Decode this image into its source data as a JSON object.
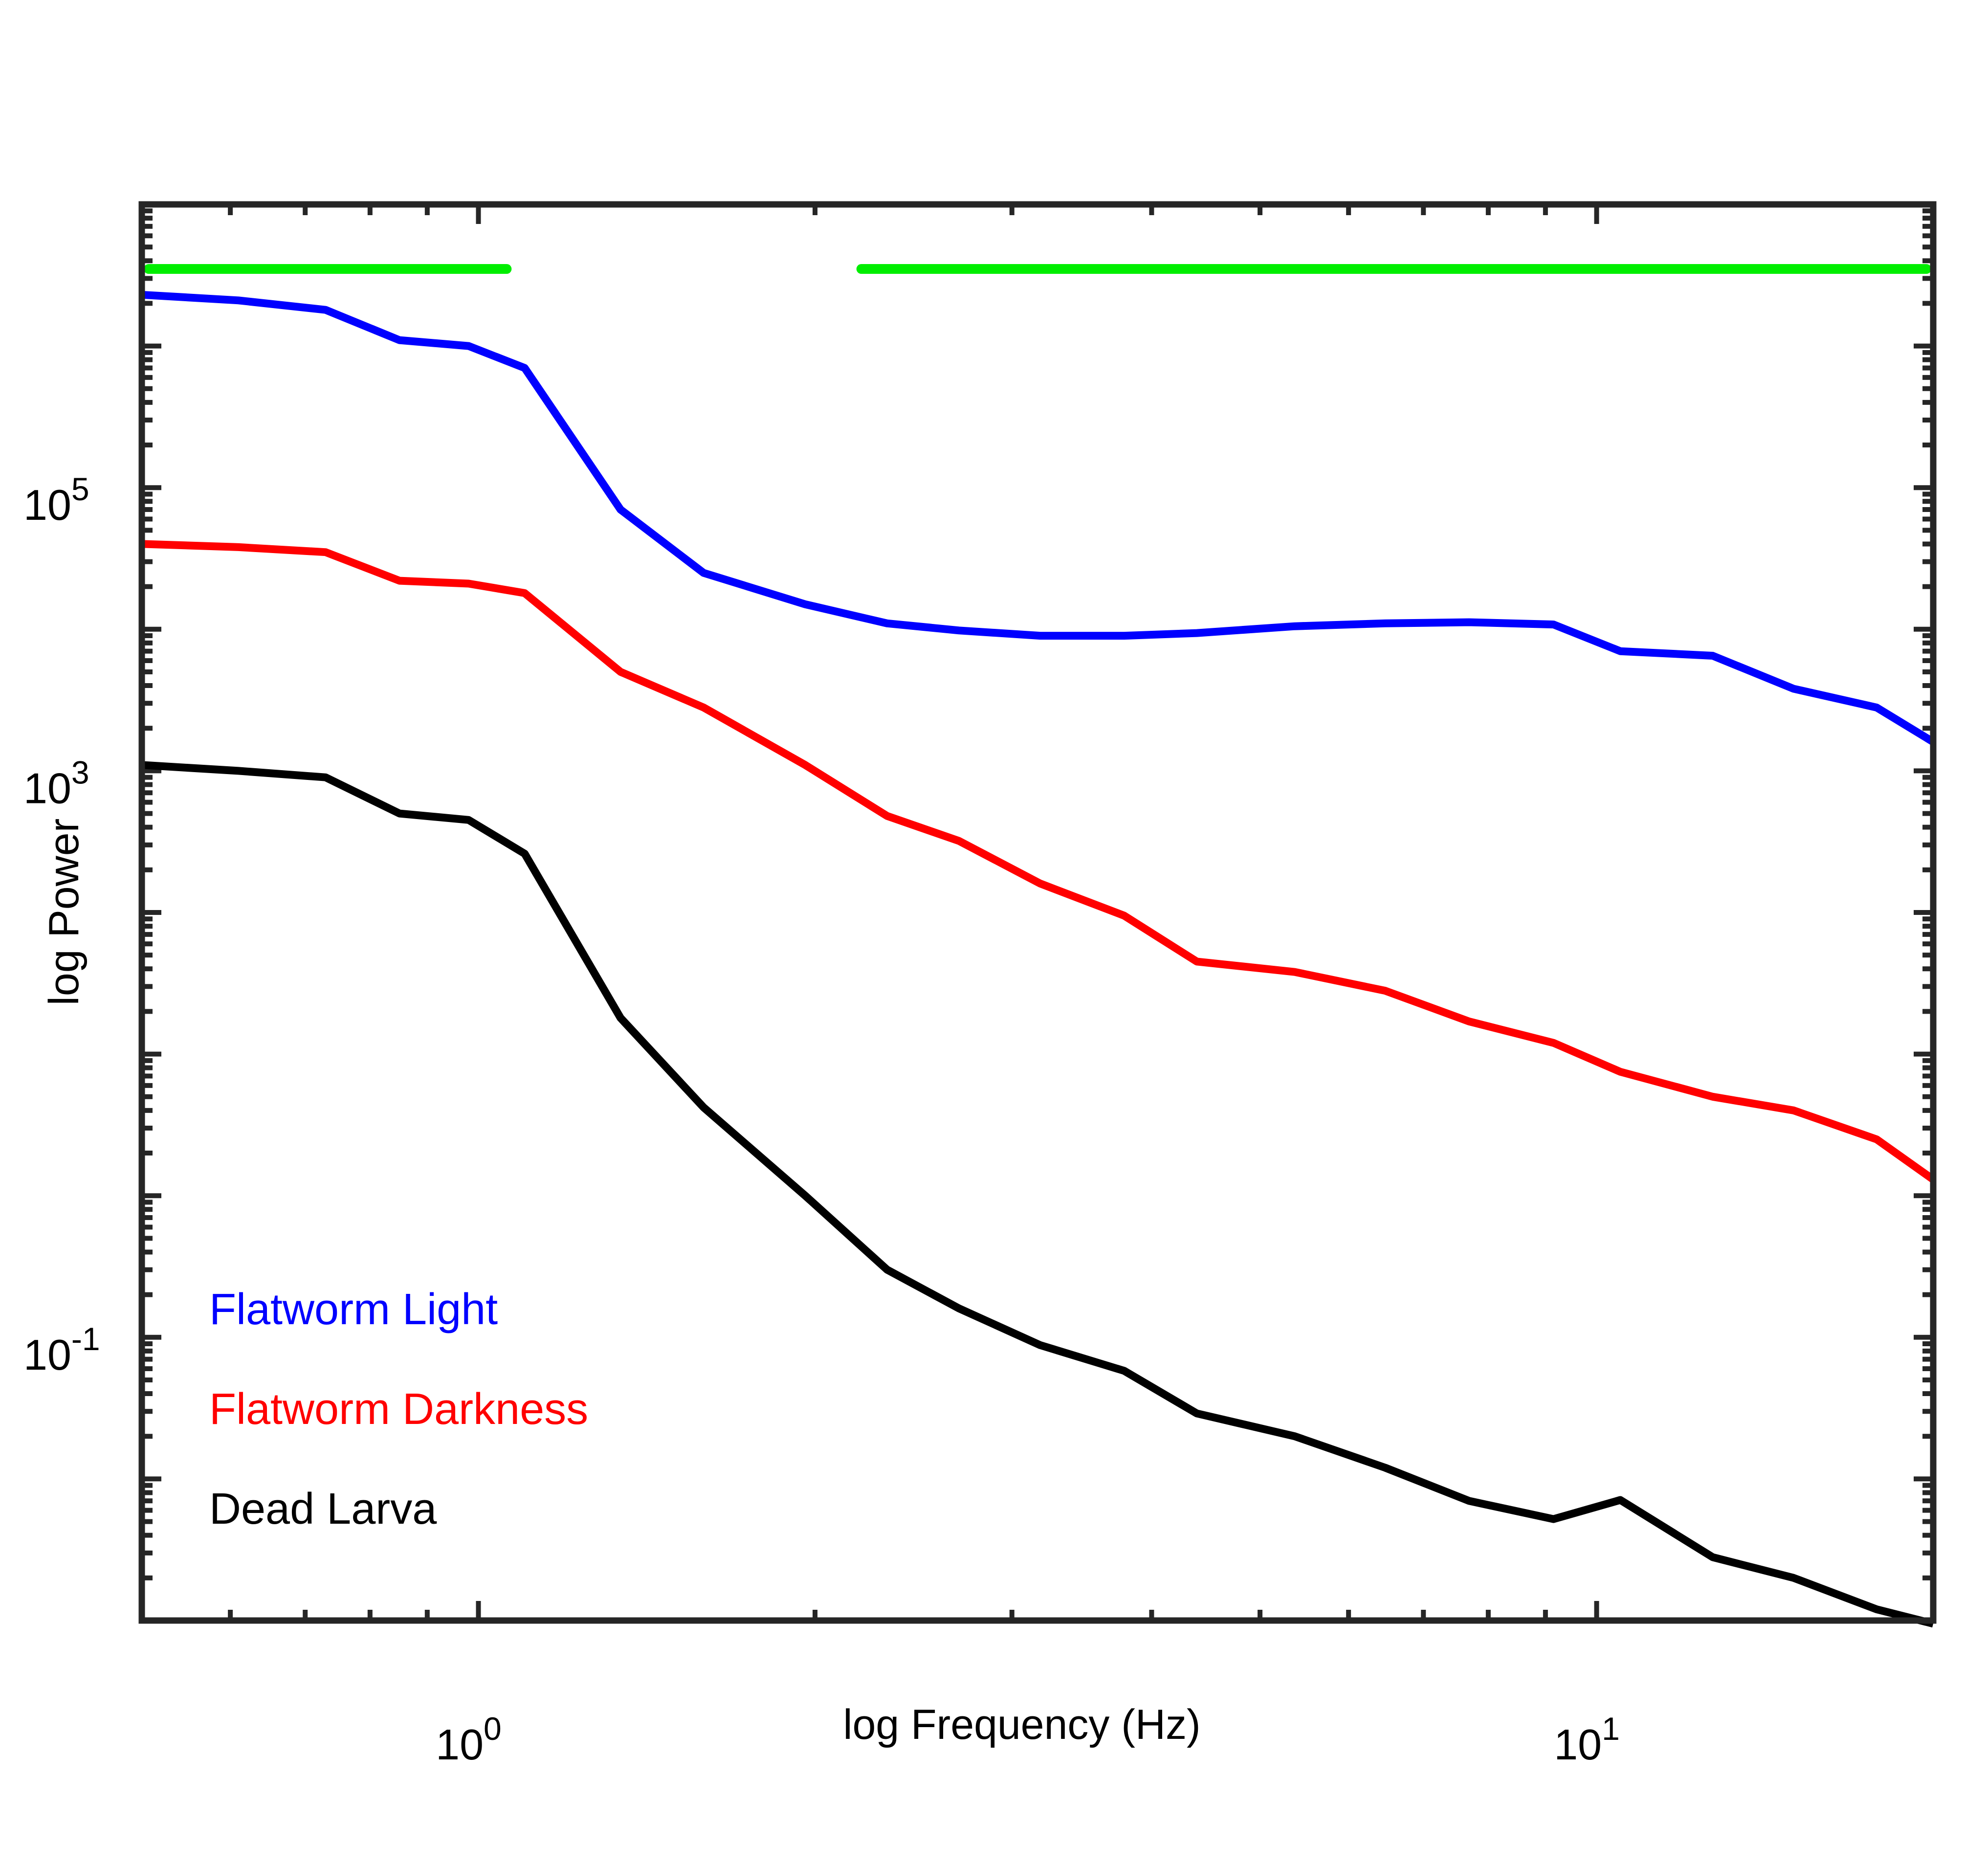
{
  "chart_data": {
    "type": "line",
    "title": "",
    "xlabel": "log Frequency (Hz)",
    "ylabel": "log Power",
    "xscale": "log",
    "yscale": "log",
    "xlim": [
      0.5,
      20
    ],
    "ylim": [
      0.001,
      10000000
    ],
    "x_ticks": [
      {
        "base": "10",
        "exp": "0",
        "value": 1
      },
      {
        "base": "10",
        "exp": "1",
        "value": 10
      }
    ],
    "y_ticks": [
      {
        "base": "10",
        "exp": "5",
        "value": 100000
      },
      {
        "base": "10",
        "exp": "3",
        "value": 1000
      },
      {
        "base": "10",
        "exp": "-1",
        "value": 0.1
      }
    ],
    "grid": false,
    "legend_position": "bottom-left",
    "significance_bars": {
      "color": "#00ee00",
      "y": 3500000,
      "segments": [
        [
          0.5,
          1.06
        ],
        [
          2.2,
          20
        ]
      ]
    },
    "x": [
      0.5,
      0.61,
      0.73,
      0.85,
      0.98,
      1.1,
      1.34,
      1.59,
      1.96,
      2.32,
      2.69,
      3.18,
      3.78,
      4.39,
      5.37,
      6.47,
      7.69,
      9.15,
      10.5,
      12.7,
      15.0,
      17.8,
      20.0
    ],
    "series": [
      {
        "name": "Flatworm Light",
        "color": "#0000ff",
        "values": [
          2300000,
          2100000,
          1800000,
          1100000,
          1000000,
          700000,
          70000,
          25000,
          15000,
          11000,
          9800,
          9000,
          9000,
          9400,
          10500,
          11000,
          11200,
          10800,
          7000,
          6500,
          3800,
          2800,
          1600
        ]
      },
      {
        "name": "Flatworm Darkness",
        "color": "#ff0000",
        "values": [
          40000,
          38000,
          35000,
          22000,
          21000,
          18000,
          5000,
          2800,
          1100,
          480,
          320,
          160,
          95,
          45,
          38,
          28,
          17,
          12,
          7.5,
          5,
          4,
          2.5,
          1.3
        ]
      },
      {
        "name": "Dead Larva",
        "color": "#000000",
        "values": [
          1100,
          1000,
          900,
          500,
          450,
          260,
          18,
          4.2,
          1.0,
          0.3,
          0.16,
          0.088,
          0.058,
          0.029,
          0.02,
          0.012,
          0.007,
          0.0052,
          0.0071,
          0.0028,
          0.002,
          0.0012,
          0.00095
        ]
      }
    ]
  }
}
